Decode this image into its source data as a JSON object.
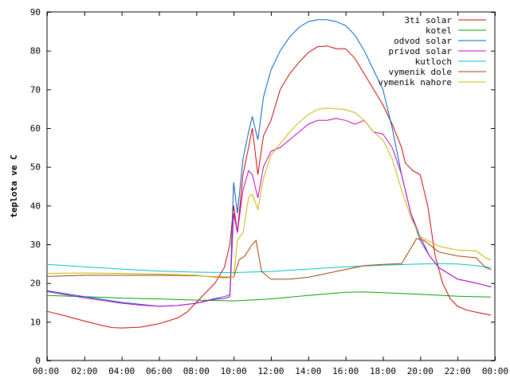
{
  "chart_data": {
    "type": "line",
    "title": "",
    "xlabel": "",
    "ylabel": "teplota ve C",
    "xlim": [
      "00:00",
      "24:00"
    ],
    "ylim": [
      0,
      90
    ],
    "x_ticks": [
      "00:00",
      "02:00",
      "04:00",
      "06:00",
      "08:00",
      "10:00",
      "12:00",
      "14:00",
      "16:00",
      "18:00",
      "20:00",
      "22:00",
      "00:00"
    ],
    "y_ticks": [
      0,
      10,
      20,
      30,
      40,
      50,
      60,
      70,
      80,
      90
    ],
    "grid": false,
    "legend_position": "top-right",
    "x_unit": "hours of day",
    "series": [
      {
        "name": "3ti solar",
        "color": "#cc0000",
        "x": [
          0,
          1,
          2,
          3,
          3.5,
          4,
          5,
          6,
          7,
          7.5,
          8,
          9,
          9.5,
          9.8,
          10,
          10.2,
          10.5,
          10.8,
          11,
          11.3,
          11.6,
          12,
          12.5,
          13,
          13.5,
          14,
          14.5,
          15,
          15.5,
          16,
          16.5,
          17,
          17.5,
          18,
          18.5,
          19,
          19.2,
          19.6,
          20,
          20.4,
          20.8,
          21.2,
          21.6,
          22,
          22.5,
          23,
          23.8
        ],
        "y": [
          12.7,
          11.5,
          10.2,
          9,
          8.5,
          8.4,
          8.6,
          9.5,
          11,
          12.5,
          15,
          20,
          24,
          30,
          40,
          33,
          48,
          55,
          60,
          48,
          58,
          62,
          70,
          74,
          77,
          79.5,
          81,
          81.2,
          80.5,
          80.5,
          78,
          74,
          70,
          66,
          61,
          55,
          51,
          49,
          48,
          40,
          27,
          20,
          16,
          14,
          13,
          12.5,
          11.7
        ]
      },
      {
        "name": "kotel",
        "color": "#00a000",
        "x": [
          0,
          2,
          4,
          6,
          8,
          10,
          12,
          14,
          16,
          17,
          18,
          20,
          22,
          23.8
        ],
        "y": [
          16.8,
          16.5,
          16.1,
          15.9,
          15.6,
          15.4,
          15.9,
          16.8,
          17.6,
          17.7,
          17.5,
          17.1,
          16.6,
          16.4
        ]
      },
      {
        "name": "odvod solar",
        "color": "#0060c0",
        "x": [
          0,
          2,
          4,
          5,
          6,
          7,
          8,
          9,
          9.5,
          9.8,
          10,
          10.2,
          10.5,
          10.8,
          11,
          11.3,
          11.6,
          12,
          12.5,
          13,
          13.5,
          14,
          14.5,
          15,
          15.5,
          16,
          16.5,
          17,
          17.5,
          18,
          18.5,
          19,
          19.5,
          20,
          20.5,
          21,
          22,
          23,
          23.8
        ],
        "y": [
          18,
          16.5,
          15,
          14.5,
          14,
          14.2,
          14.8,
          16,
          16.5,
          17,
          46,
          38,
          52,
          59,
          63,
          57,
          68,
          75,
          80,
          83.5,
          86,
          87.5,
          88,
          88,
          87.5,
          86.5,
          84,
          80,
          75,
          70,
          60,
          48,
          38,
          31,
          27,
          24,
          21,
          20,
          19
        ]
      },
      {
        "name": "privod solar",
        "color": "#c000c0",
        "x": [
          0,
          2,
          4,
          5,
          6,
          7,
          8,
          9,
          9.5,
          9.8,
          10,
          10.2,
          10.5,
          10.8,
          11,
          11.3,
          11.6,
          12,
          12.5,
          13,
          13.5,
          14,
          14.5,
          15,
          15.5,
          16,
          16.5,
          17,
          17.5,
          18,
          18.5,
          19,
          19.5,
          20,
          20.5,
          21,
          22,
          23,
          23.8
        ],
        "y": [
          17.8,
          16.2,
          14.8,
          14.3,
          14,
          14.2,
          14.8,
          15.8,
          16,
          16.5,
          38,
          33,
          44,
          49,
          48,
          42,
          50,
          54,
          55,
          57,
          59,
          61,
          62,
          62,
          62.5,
          62,
          61,
          62,
          59,
          58.5,
          55,
          48,
          38,
          32,
          27,
          24,
          21,
          20,
          19
        ]
      },
      {
        "name": "kutloch",
        "color": "#00c0c0",
        "x": [
          0,
          2,
          4,
          6,
          8,
          10,
          12,
          14,
          16,
          18,
          20,
          21,
          22,
          23,
          23.8
        ],
        "y": [
          24.8,
          24.2,
          23.6,
          23.1,
          22.8,
          22.7,
          23,
          23.6,
          24.2,
          24.6,
          24.9,
          25,
          24.9,
          24.5,
          24
        ]
      },
      {
        "name": "vymenik dole",
        "color": "#a04000",
        "x": [
          0,
          2,
          4,
          6,
          8,
          9,
          10,
          10.3,
          10.6,
          11,
          11.2,
          11.5,
          12,
          13,
          14,
          15,
          16,
          17,
          18,
          19,
          19.5,
          19.8,
          20.2,
          20.6,
          21,
          22,
          23,
          23.5,
          23.8
        ],
        "y": [
          21.7,
          22,
          22,
          22,
          21.9,
          21.6,
          21.5,
          26,
          27,
          30,
          31,
          23,
          21,
          21,
          21.5,
          22.5,
          23.5,
          24.5,
          24.8,
          25,
          29,
          31.5,
          31,
          29.5,
          28,
          27,
          26.5,
          24,
          23.5
        ]
      },
      {
        "name": "vymenik nahore",
        "color": "#c8b400",
        "x": [
          0,
          2,
          4,
          6,
          8,
          9,
          9.5,
          10,
          10.2,
          10.5,
          10.8,
          11,
          11.3,
          11.6,
          12,
          12.5,
          13,
          13.5,
          14,
          14.5,
          15,
          15.5,
          16,
          16.5,
          17,
          17.5,
          18,
          18.5,
          19,
          19.5,
          20,
          21,
          22,
          23,
          23.5,
          23.8
        ],
        "y": [
          22.5,
          22.6,
          22.5,
          22.3,
          22,
          21.5,
          21.3,
          21.5,
          31,
          33,
          42,
          43,
          39,
          47,
          53,
          56,
          59,
          61.5,
          63.5,
          64.8,
          65.2,
          65,
          64.8,
          64,
          62,
          59,
          57,
          52,
          44,
          37,
          32,
          29.5,
          28.5,
          28.3,
          26.5,
          26
        ]
      }
    ]
  }
}
